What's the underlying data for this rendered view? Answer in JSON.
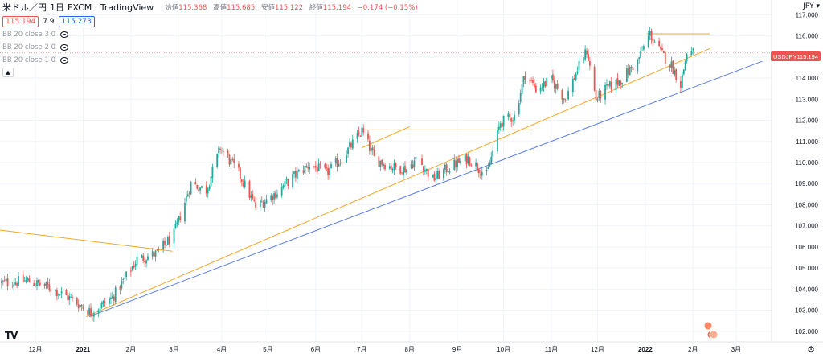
{
  "header": {
    "symbol": "米ドル／円",
    "interval": "1日",
    "source": "FXCM · TradingView",
    "ohlc": [
      {
        "label": "始値",
        "value": "115.368"
      },
      {
        "label": "高値",
        "value": "115.685"
      },
      {
        "label": "安値",
        "value": "115.122"
      },
      {
        "label": "終値",
        "value": "115.194"
      }
    ],
    "change": "−0.174 (−0.15%)",
    "sell_price": "115.194",
    "spread": "7.9",
    "buy_price": "115.273"
  },
  "indicators": [
    {
      "label": "BB 20 close 3 0"
    },
    {
      "label": "BB 20 close 2 0"
    },
    {
      "label": "BB 20 close 1 0"
    }
  ],
  "currency_label": "JPY",
  "last_price_tag": {
    "symbol": "USDJPY",
    "price": "115.194"
  },
  "brand_logo": "TV",
  "colors": {
    "up": "#26a69a",
    "down": "#ef5350",
    "trend_orange": "#f5a623",
    "trend_blue": "#5b7ee5",
    "price_line": "#ef5350",
    "grid": "#f0f3fa"
  },
  "chart_data": {
    "type": "candlestick",
    "ylim": [
      101.5,
      117.7
    ],
    "xlim": [
      "2020-11-08",
      "2022-03-24"
    ],
    "y_ticks": [
      "102.000",
      "103.000",
      "104.000",
      "105.000",
      "106.000",
      "107.000",
      "108.000",
      "109.000",
      "110.000",
      "111.000",
      "112.000",
      "113.000",
      "114.000",
      "115.000",
      "116.000",
      "117.000"
    ],
    "x_ticks": [
      {
        "date": "2020-12-01",
        "label": "12月"
      },
      {
        "date": "2021-01-01",
        "label": "2021"
      },
      {
        "date": "2021-02-01",
        "label": "2月"
      },
      {
        "date": "2021-03-01",
        "label": "3月"
      },
      {
        "date": "2021-04-01",
        "label": "4月"
      },
      {
        "date": "2021-05-01",
        "label": "5月"
      },
      {
        "date": "2021-06-01",
        "label": "6月"
      },
      {
        "date": "2021-07-01",
        "label": "7月"
      },
      {
        "date": "2021-08-01",
        "label": "8月"
      },
      {
        "date": "2021-09-01",
        "label": "9月"
      },
      {
        "date": "2021-10-01",
        "label": "10月"
      },
      {
        "date": "2021-11-01",
        "label": "11月"
      },
      {
        "date": "2021-12-01",
        "label": "12月"
      },
      {
        "date": "2022-01-01",
        "label": "2022"
      },
      {
        "date": "2022-02-01",
        "label": "2月"
      },
      {
        "date": "2022-03-01",
        "label": "3月"
      }
    ],
    "close_path": [
      [
        "2020-11-09",
        104.3
      ],
      [
        "2020-11-25",
        104.4
      ],
      [
        "2020-12-10",
        104.1
      ],
      [
        "2020-12-25",
        103.5
      ],
      [
        "2021-01-06",
        102.9
      ],
      [
        "2021-01-20",
        103.6
      ],
      [
        "2021-02-05",
        105.4
      ],
      [
        "2021-02-18",
        105.7
      ],
      [
        "2021-03-01",
        106.6
      ],
      [
        "2021-03-12",
        109.0
      ],
      [
        "2021-03-22",
        108.7
      ],
      [
        "2021-03-31",
        110.7
      ],
      [
        "2021-04-12",
        109.5
      ],
      [
        "2021-04-23",
        107.9
      ],
      [
        "2021-05-07",
        108.6
      ],
      [
        "2021-05-17",
        109.3
      ],
      [
        "2021-05-28",
        109.9
      ],
      [
        "2021-06-08",
        109.5
      ],
      [
        "2021-06-18",
        110.2
      ],
      [
        "2021-07-01",
        111.5
      ],
      [
        "2021-07-09",
        110.2
      ],
      [
        "2021-07-20",
        109.8
      ],
      [
        "2021-07-30",
        109.7
      ],
      [
        "2021-08-06",
        110.2
      ],
      [
        "2021-08-16",
        109.2
      ],
      [
        "2021-08-27",
        109.8
      ],
      [
        "2021-09-08",
        110.2
      ],
      [
        "2021-09-20",
        109.4
      ],
      [
        "2021-09-29",
        111.9
      ],
      [
        "2021-10-08",
        112.2
      ],
      [
        "2021-10-15",
        114.2
      ],
      [
        "2021-10-22",
        113.5
      ],
      [
        "2021-11-01",
        113.9
      ],
      [
        "2021-11-10",
        113.0
      ],
      [
        "2021-11-18",
        114.4
      ],
      [
        "2021-11-24",
        115.3
      ],
      [
        "2021-11-30",
        113.0
      ],
      [
        "2021-12-07",
        113.5
      ],
      [
        "2021-12-16",
        113.9
      ],
      [
        "2021-12-27",
        114.8
      ],
      [
        "2022-01-04",
        116.1
      ],
      [
        "2022-01-11",
        115.2
      ],
      [
        "2022-01-18",
        114.6
      ],
      [
        "2022-01-24",
        113.7
      ],
      [
        "2022-01-28",
        115.2
      ],
      [
        "2022-02-01",
        115.19
      ]
    ],
    "drawings": [
      {
        "type": "trendline",
        "color": "orange",
        "points": [
          [
            "2020-11-08",
            106.8
          ],
          [
            "2021-02-28",
            105.8
          ]
        ]
      },
      {
        "type": "trendline",
        "color": "orange",
        "points": [
          [
            "2021-01-03",
            102.7
          ],
          [
            "2022-02-12",
            115.4
          ]
        ]
      },
      {
        "type": "horizontal",
        "color": "orange",
        "points": [
          [
            "2021-07-01",
            111.55
          ],
          [
            "2021-10-20",
            111.55
          ]
        ]
      },
      {
        "type": "trendline",
        "color": "orange",
        "points": [
          [
            "2021-07-01",
            110.7
          ],
          [
            "2021-08-01",
            111.7
          ]
        ]
      },
      {
        "type": "horizontal",
        "color": "orange",
        "points": [
          [
            "2022-01-02",
            116.1
          ],
          [
            "2022-02-12",
            116.1
          ]
        ]
      },
      {
        "type": "trendline",
        "color": "blue",
        "points": [
          [
            "2021-01-05",
            102.7
          ],
          [
            "2022-03-18",
            114.8
          ]
        ]
      }
    ],
    "last_price": 115.194
  }
}
